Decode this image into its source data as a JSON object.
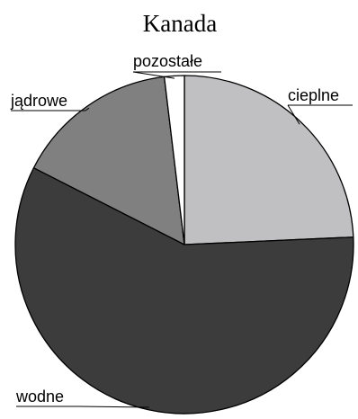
{
  "chart_data": {
    "type": "pie",
    "title": "Kanada",
    "slices": [
      {
        "label": "cieplne",
        "value": 24.3,
        "color": "#c0c0c2"
      },
      {
        "label": "wodne",
        "value": 58.2,
        "color": "#3c3c3c"
      },
      {
        "label": "jądrowe",
        "value": 15.6,
        "color": "#808080"
      },
      {
        "label": "pozostałe",
        "value": 1.9,
        "color": "#ffffff"
      }
    ],
    "start_angle_deg": 0,
    "direction": "clockwise",
    "legend": "none"
  }
}
